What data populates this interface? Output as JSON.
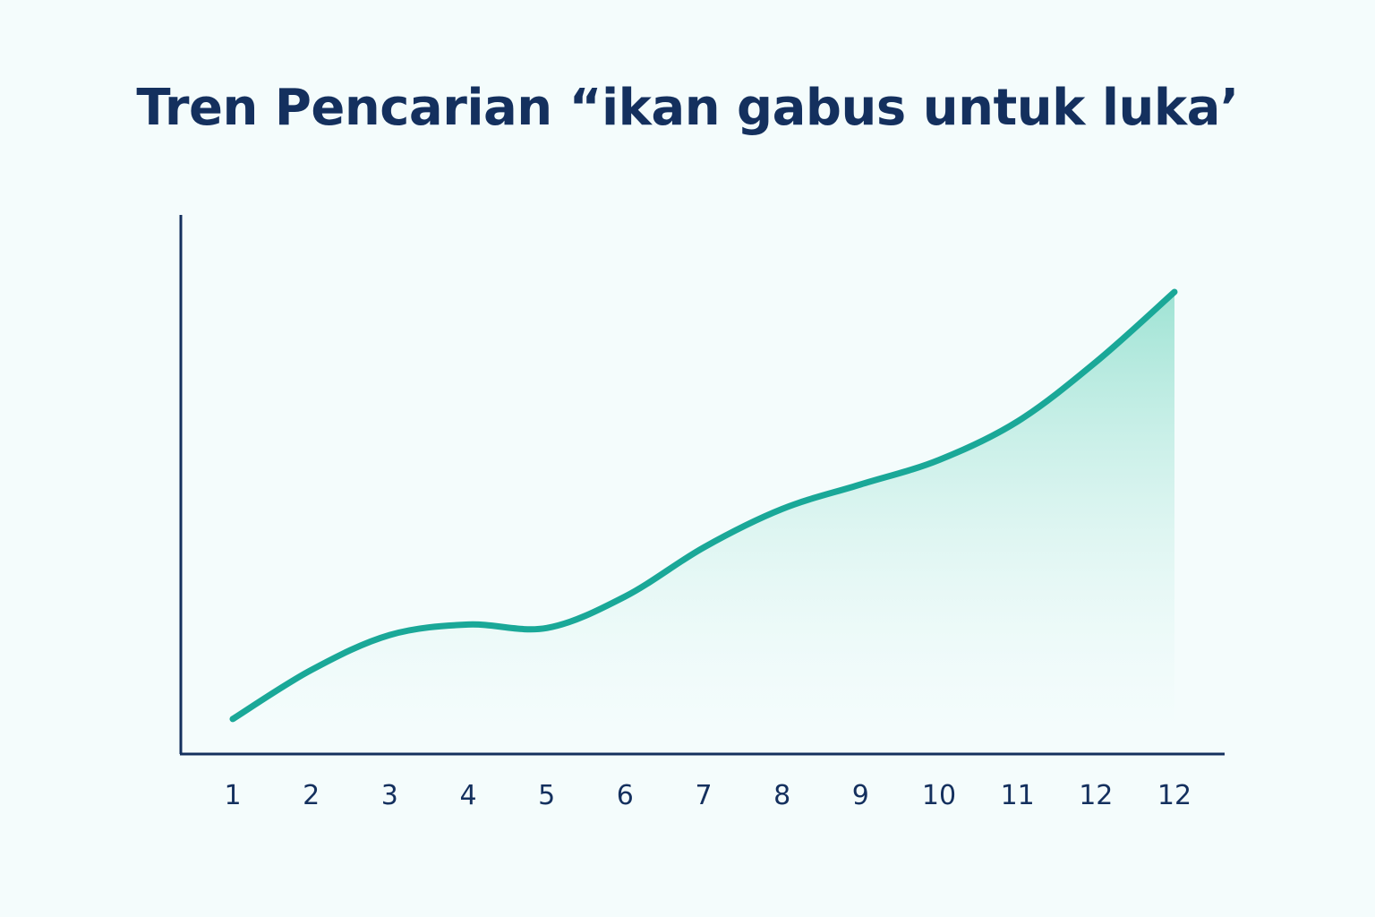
{
  "chart_data": {
    "type": "area",
    "title": "Tren Pencarian “ikan gabus untuk luka’",
    "xlabel": "",
    "ylabel": "",
    "categories": [
      "1",
      "2",
      "3",
      "4",
      "5",
      "6",
      "7",
      "8",
      "9",
      "10",
      "11",
      "12",
      "12"
    ],
    "series": [
      {
        "values": [
          10,
          24,
          34,
          37,
          36,
          45,
          59,
          70,
          77,
          84,
          95,
          112,
          132
        ]
      }
    ],
    "ylim": [
      0,
      154
    ],
    "grid": false,
    "y_tick_labels": false,
    "legend": "none",
    "colors": {
      "line": "#1aa898",
      "fill_top": "#9fe3d4",
      "fill_bottom": "#f4fcfc",
      "axis": "#14305e",
      "text": "#14305e",
      "background": "#f4fcfc"
    }
  }
}
